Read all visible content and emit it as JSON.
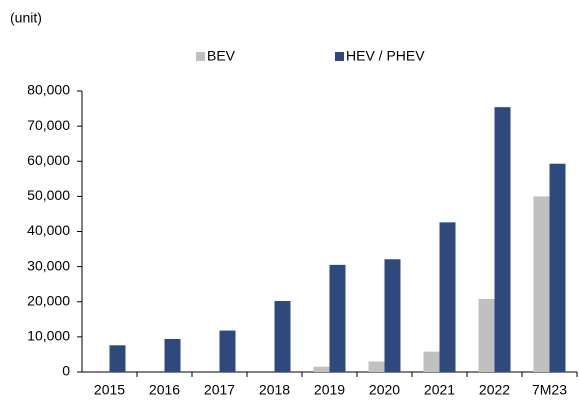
{
  "chart_data": {
    "type": "bar",
    "unit_label": "(unit)",
    "categories": [
      "2015",
      "2016",
      "2017",
      "2018",
      "2019",
      "2020",
      "2021",
      "2022",
      "7M23"
    ],
    "series": [
      {
        "name": "BEV",
        "color": "#c0c0c0",
        "values": [
          0,
          0,
          0,
          0,
          1500,
          3000,
          5800,
          20800,
          50000
        ]
      },
      {
        "name": "HEV / PHEV",
        "color": "#2e4a7d",
        "values": [
          7600,
          9400,
          11800,
          20200,
          30500,
          32100,
          42600,
          75400,
          59300
        ]
      }
    ],
    "ylim": [
      0,
      80000
    ],
    "yticks": [
      0,
      {
        "value": 10000,
        "label": "10,000"
      },
      {
        "value": 20000,
        "label": "20,000"
      },
      {
        "value": 30000,
        "label": "30,000"
      },
      {
        "value": 40000,
        "label": "40,000"
      },
      {
        "value": 50000,
        "label": "50,000"
      },
      {
        "value": 60000,
        "label": "60,000"
      },
      {
        "value": 70000,
        "label": "70,000"
      },
      {
        "value": 80000,
        "label": "80,000"
      }
    ],
    "grid": false,
    "legend": "top"
  }
}
